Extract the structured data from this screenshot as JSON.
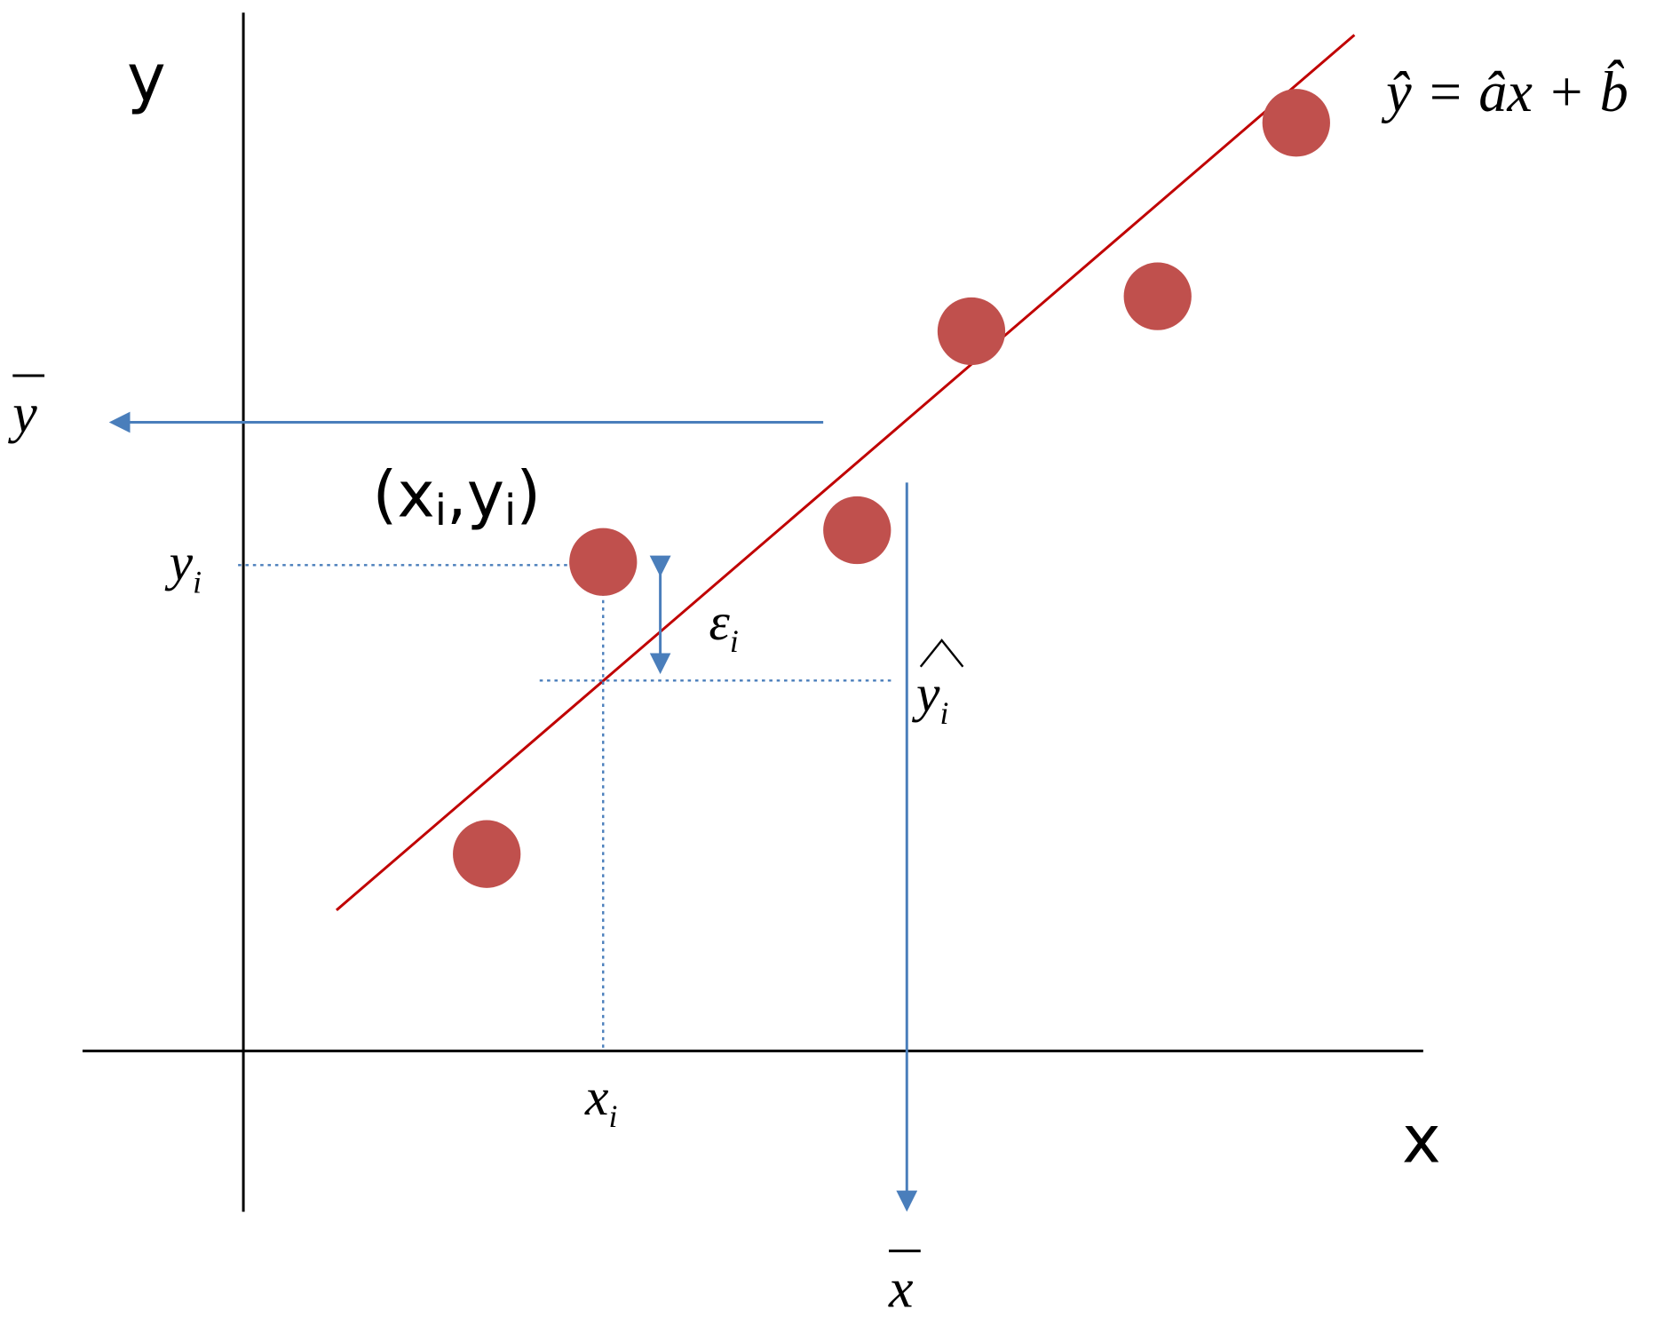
{
  "axes": {
    "y_label": "y",
    "x_label": "x"
  },
  "point_label": {
    "open": "(",
    "x": "x",
    "x_sub": "i",
    "sep": ",",
    "y": "y",
    "y_sub": "i",
    "close": ")"
  },
  "labels": {
    "y_i": {
      "base": "y",
      "sub": "i"
    },
    "x_i": {
      "base": "x",
      "sub": "i"
    },
    "epsilon_i": {
      "base": "ε",
      "sub": "i"
    },
    "y_hat_i": {
      "base": "y",
      "sub": "i"
    },
    "y_bar": "y",
    "x_bar": "x"
  },
  "equation": "ŷ = âx + b̂"
}
